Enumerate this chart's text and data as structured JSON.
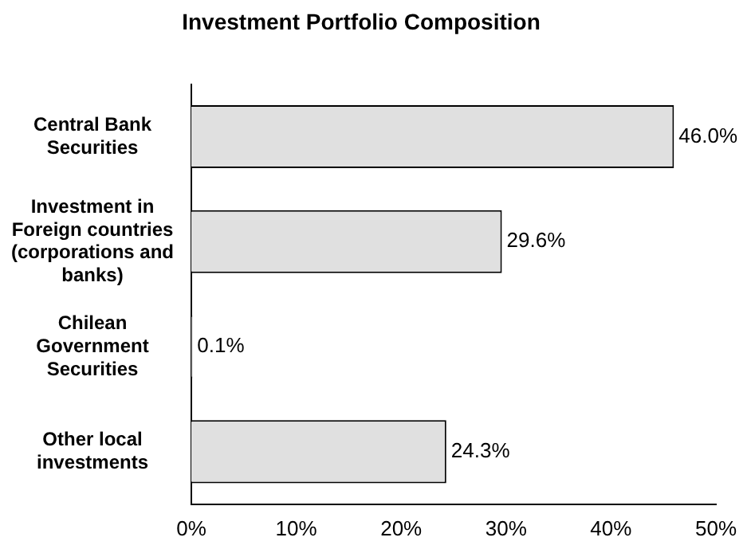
{
  "chart_data": {
    "type": "bar",
    "orientation": "horizontal",
    "title": "Investment Portfolio Composition",
    "categories": [
      "Central Bank Securities",
      "Investment in Foreign countries (corporations and banks)",
      "Chilean Government Securities",
      "Other local investments"
    ],
    "values": [
      46.0,
      29.6,
      0.1,
      24.3
    ],
    "value_labels": [
      "46.0%",
      "29.6%",
      "0.1%",
      "24.3%"
    ],
    "color": "#e0e0e0",
    "xlim": [
      0,
      50
    ],
    "xticks": [
      {
        "value": 0,
        "label": "0%"
      },
      {
        "value": 10,
        "label": "10%"
      },
      {
        "value": 20,
        "label": "20%"
      },
      {
        "value": 30,
        "label": "30%"
      },
      {
        "value": 40,
        "label": "40%"
      },
      {
        "value": 50,
        "label": "50%"
      }
    ],
    "grid": false,
    "legend": false
  }
}
